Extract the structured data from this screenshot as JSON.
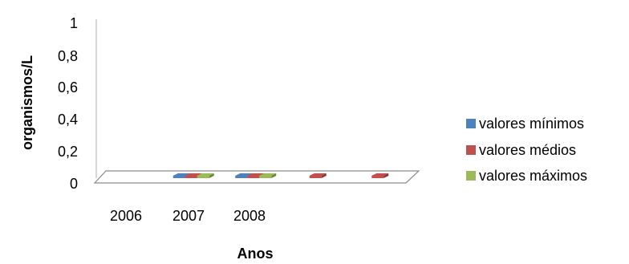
{
  "chart_data": {
    "type": "bar",
    "subtype": "3d-clustered-column",
    "title": "",
    "xlabel": "Anos",
    "ylabel": "organismos/L",
    "categories": [
      "2006",
      "2007",
      "2008",
      "",
      ""
    ],
    "ylim": [
      0,
      1
    ],
    "yticks": [
      "0",
      "0,2",
      "0,4",
      "0,6",
      "0,8",
      "1"
    ],
    "ytick_values": [
      0,
      0.2,
      0.4,
      0.6,
      0.8,
      1
    ],
    "series": [
      {
        "name": "valores mínimos",
        "color": "#4F81BD",
        "values": [
          null,
          0,
          0,
          null,
          null
        ]
      },
      {
        "name": "valores médios",
        "color": "#C0504D",
        "values": [
          null,
          0,
          0,
          0,
          0
        ]
      },
      {
        "name": "valores máximos",
        "color": "#9BBB59",
        "values": [
          null,
          0,
          0,
          null,
          null
        ]
      }
    ],
    "legend_position": "right",
    "grid": false
  }
}
